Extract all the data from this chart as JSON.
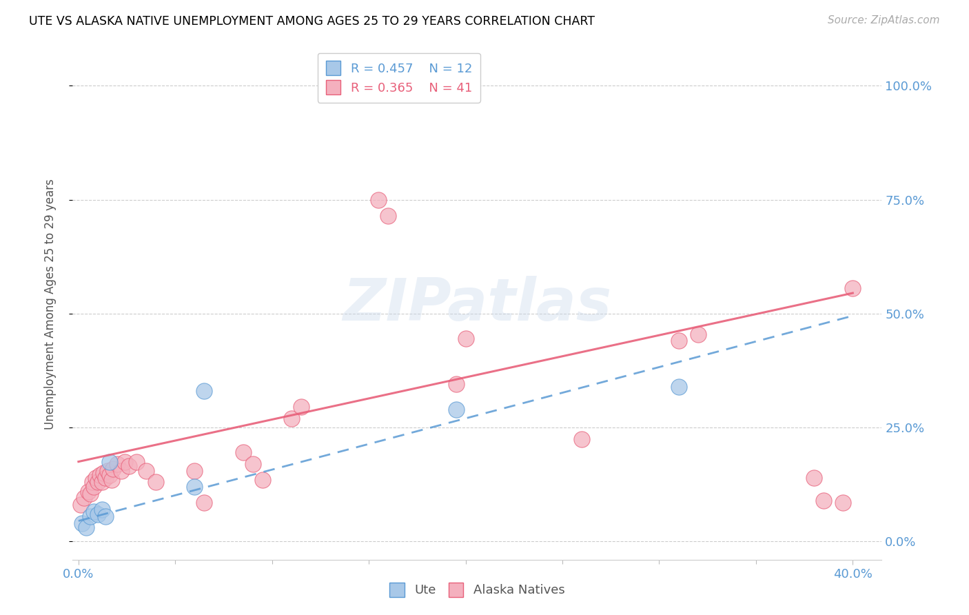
{
  "title": "UTE VS ALASKA NATIVE UNEMPLOYMENT AMONG AGES 25 TO 29 YEARS CORRELATION CHART",
  "source": "Source: ZipAtlas.com",
  "ylabel": "Unemployment Among Ages 25 to 29 years",
  "ytick_labels": [
    "0.0%",
    "25.0%",
    "50.0%",
    "75.0%",
    "100.0%"
  ],
  "ytick_values": [
    0.0,
    0.25,
    0.5,
    0.75,
    1.0
  ],
  "xlim": [
    -0.003,
    0.415
  ],
  "ylim": [
    -0.04,
    1.08
  ],
  "legend_ute_R": "0.457",
  "legend_ute_N": "12",
  "legend_alaska_R": "0.365",
  "legend_alaska_N": "41",
  "ute_fill_color": "#a8c8e8",
  "alaska_fill_color": "#f4b0be",
  "ute_edge_color": "#5a9ad4",
  "alaska_edge_color": "#e8607a",
  "ute_line_color": "#5a9ad4",
  "alaska_line_color": "#e8607a",
  "watermark": "ZIPatlas",
  "ute_x": [
    0.002,
    0.004,
    0.006,
    0.008,
    0.01,
    0.012,
    0.014,
    0.016,
    0.06,
    0.065,
    0.195,
    0.31
  ],
  "ute_y": [
    0.04,
    0.03,
    0.055,
    0.065,
    0.06,
    0.07,
    0.055,
    0.175,
    0.12,
    0.33,
    0.29,
    0.34
  ],
  "alaska_x": [
    0.001,
    0.003,
    0.005,
    0.006,
    0.007,
    0.008,
    0.009,
    0.01,
    0.011,
    0.012,
    0.013,
    0.014,
    0.015,
    0.016,
    0.017,
    0.018,
    0.02,
    0.022,
    0.024,
    0.026,
    0.03,
    0.035,
    0.04,
    0.06,
    0.065,
    0.085,
    0.09,
    0.095,
    0.11,
    0.115,
    0.155,
    0.16,
    0.195,
    0.2,
    0.26,
    0.31,
    0.32,
    0.38,
    0.385,
    0.395,
    0.4
  ],
  "alaska_y": [
    0.08,
    0.095,
    0.11,
    0.105,
    0.13,
    0.12,
    0.14,
    0.13,
    0.145,
    0.13,
    0.15,
    0.14,
    0.155,
    0.145,
    0.135,
    0.16,
    0.17,
    0.155,
    0.175,
    0.165,
    0.175,
    0.155,
    0.13,
    0.155,
    0.085,
    0.195,
    0.17,
    0.135,
    0.27,
    0.295,
    0.75,
    0.715,
    0.345,
    0.445,
    0.225,
    0.44,
    0.455,
    0.14,
    0.09,
    0.085,
    0.555
  ]
}
